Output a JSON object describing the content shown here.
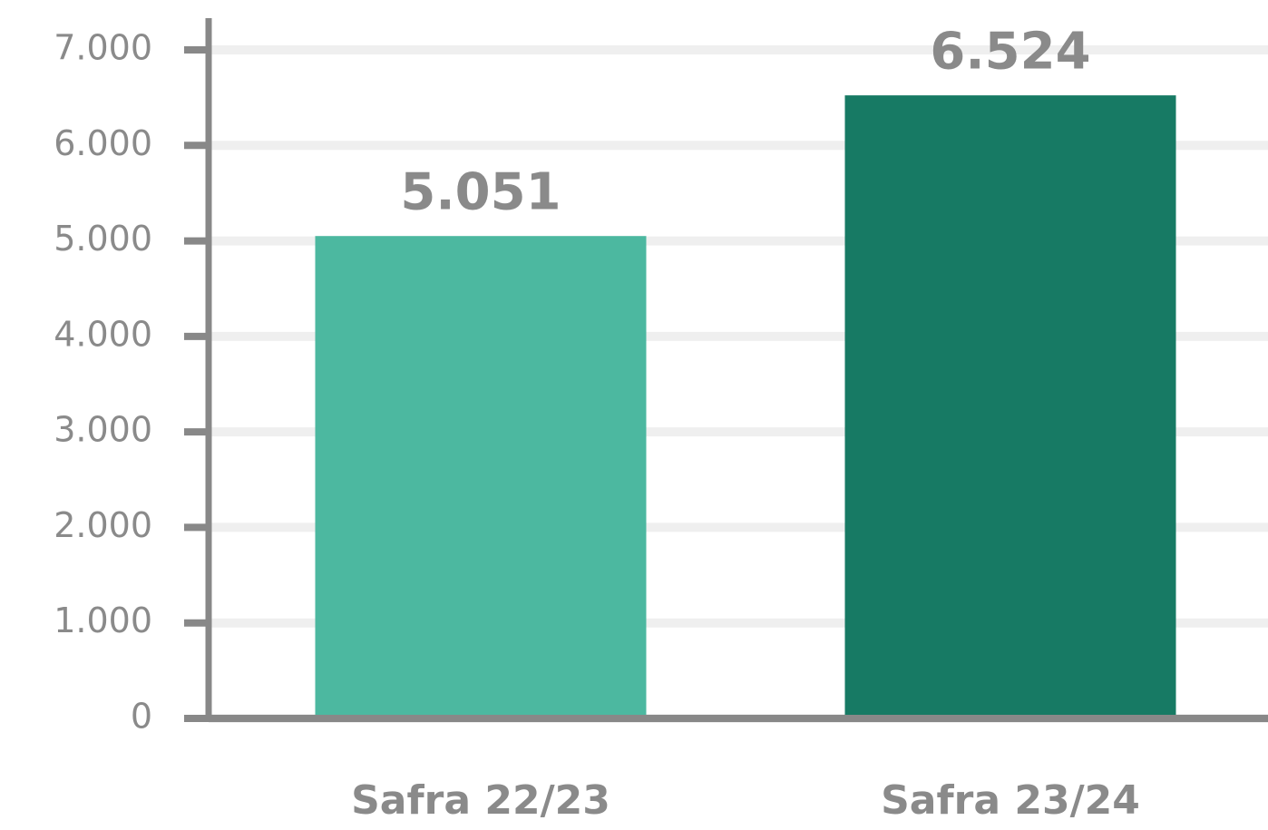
{
  "chart_data": {
    "type": "bar",
    "categories": [
      "Safra 22/23",
      "Safra 23/24"
    ],
    "values": [
      5051,
      6524
    ],
    "value_labels": [
      "5.051",
      "6.524"
    ],
    "colors": [
      "#4cb8a0",
      "#177a64"
    ],
    "ylim": [
      0,
      7000
    ],
    "yticks": [
      0,
      {
        "value": 1000,
        "label": "1.000"
      },
      {
        "value": 2000,
        "label": "2.000"
      },
      {
        "value": 3000,
        "label": "3.000"
      },
      {
        "value": 4000,
        "label": "4.000"
      },
      {
        "value": 5000,
        "label": "5.000"
      },
      {
        "value": 6000,
        "label": "6.000"
      },
      {
        "value": 7000,
        "label": "7.000"
      }
    ],
    "grid": true
  }
}
